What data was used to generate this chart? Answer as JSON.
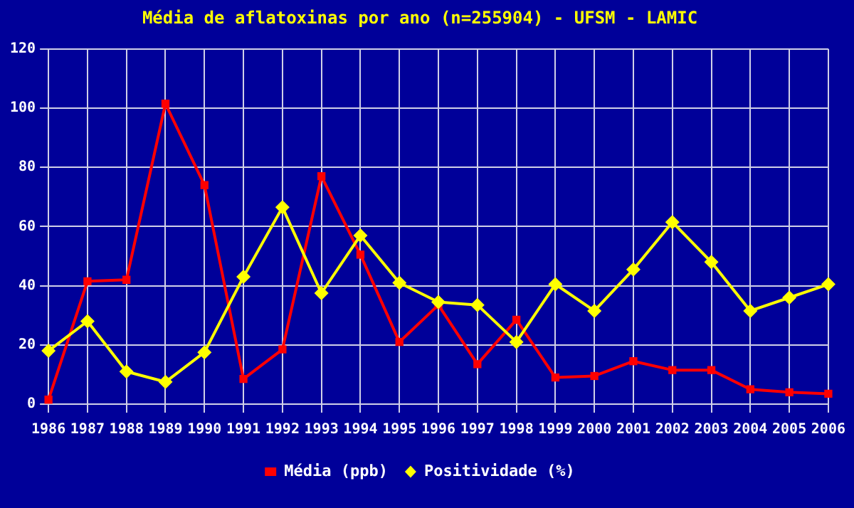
{
  "chart_data": {
    "type": "line",
    "title": "Média de aflatoxinas por ano (n=255904) - UFSM - LAMIC",
    "categories": [
      "1986",
      "1987",
      "1988",
      "1989",
      "1990",
      "1991",
      "1992",
      "1993",
      "1994",
      "1995",
      "1996",
      "1997",
      "1998",
      "1999",
      "2000",
      "2001",
      "2002",
      "2003",
      "2004",
      "2005",
      "2006"
    ],
    "series": [
      {
        "name": "Média (ppb)",
        "color": "#ff0000",
        "marker": "square",
        "values": [
          1.5,
          41.5,
          42,
          101.5,
          74,
          8.5,
          18.5,
          77,
          50.5,
          21,
          33.5,
          13.5,
          28.5,
          9,
          9.5,
          14.5,
          11.5,
          11.5,
          5,
          4,
          3.5
        ]
      },
      {
        "name": "Positividade (%)",
        "color": "#ffff00",
        "marker": "diamond",
        "values": [
          18,
          28,
          11,
          7.5,
          17.5,
          43,
          66.5,
          37.5,
          57,
          41,
          34.5,
          33.5,
          21,
          40.5,
          31.5,
          45.5,
          61.5,
          48,
          31.5,
          36,
          40.5
        ]
      }
    ],
    "ylim": [
      0,
      120
    ],
    "yticks": [
      0,
      20,
      40,
      60,
      80,
      100,
      120
    ],
    "grid": true,
    "legend": "bottom"
  }
}
